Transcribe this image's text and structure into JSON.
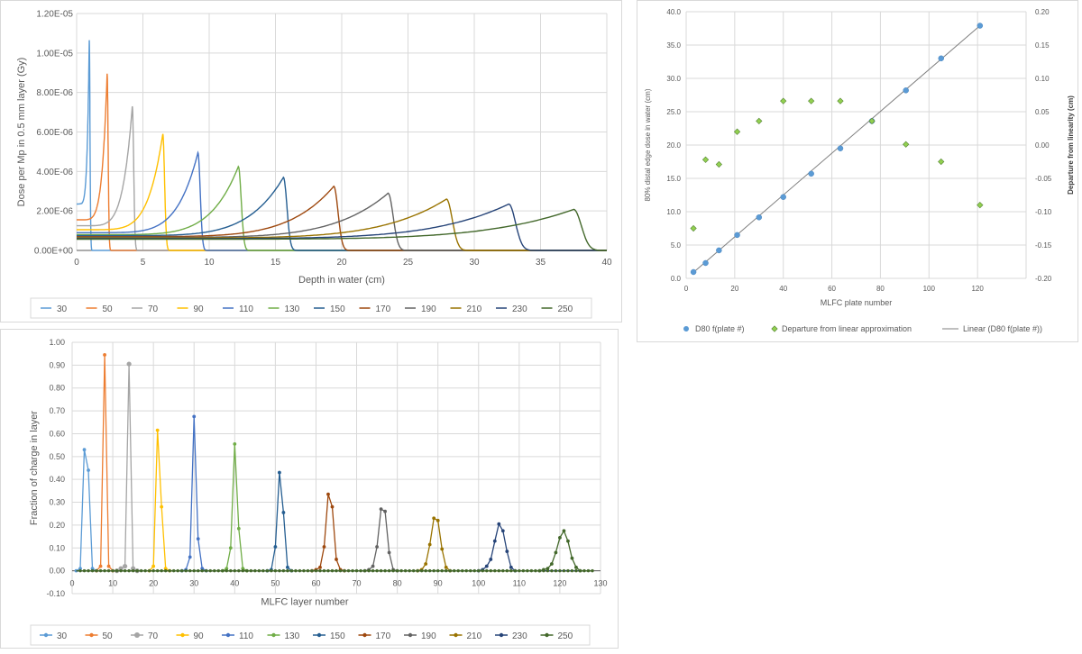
{
  "colors": {
    "e30": "#5b9bd5",
    "e50": "#ed7d31",
    "e70": "#a5a5a5",
    "e90": "#ffc000",
    "e110": "#4472c4",
    "e130": "#70ad47",
    "e150": "#255e91",
    "e170": "#9e480e",
    "e190": "#636363",
    "e210": "#997300",
    "e230": "#264478",
    "e250": "#43682b",
    "grid": "#d9d9d9",
    "axis": "#595959",
    "text": "#595959",
    "d80_marker": "#5b9bd5",
    "departure_marker": "#92d050",
    "departure_edge": "#548235",
    "linear_line": "#7f7f7f"
  },
  "chart_data": [
    {
      "id": "depth_dose",
      "type": "line",
      "title": "",
      "xlabel": "Depth in water (cm)",
      "ylabel": "Dose per Mp in 0.5 mm layer  (Gy)",
      "xlim": [
        0,
        40
      ],
      "ylim": [
        0,
        1.2e-05
      ],
      "x_ticks": [
        "0",
        "5",
        "10",
        "15",
        "20",
        "25",
        "30",
        "35",
        "40"
      ],
      "y_ticks": [
        "0.00E+00",
        "2.00E-06",
        "4.00E-06",
        "6.00E-06",
        "8.00E-06",
        "1.00E-05",
        "1.20E-05"
      ],
      "grid": true,
      "legend_position": "bottom",
      "series": [
        {
          "name": "30",
          "peak_depth": 0.95,
          "peak_dose": 1.065e-05,
          "entrance_dose": 2.35e-06,
          "color_key": "e30"
        },
        {
          "name": "50",
          "peak_depth": 2.3,
          "peak_dose": 8.95e-06,
          "entrance_dose": 1.55e-06,
          "color_key": "e50"
        },
        {
          "name": "70",
          "peak_depth": 4.2,
          "peak_dose": 7.3e-06,
          "entrance_dose": 1.25e-06,
          "color_key": "e70"
        },
        {
          "name": "90",
          "peak_depth": 6.5,
          "peak_dose": 5.9e-06,
          "entrance_dose": 1.05e-06,
          "color_key": "e90"
        },
        {
          "name": "110",
          "peak_depth": 9.15,
          "peak_dose": 4.95e-06,
          "entrance_dose": 9e-07,
          "color_key": "e110"
        },
        {
          "name": "130",
          "peak_depth": 12.2,
          "peak_dose": 4.25e-06,
          "entrance_dose": 8e-07,
          "color_key": "e130"
        },
        {
          "name": "150",
          "peak_depth": 15.6,
          "peak_dose": 3.7e-06,
          "entrance_dose": 7.5e-07,
          "color_key": "e150"
        },
        {
          "name": "170",
          "peak_depth": 19.4,
          "peak_dose": 3.25e-06,
          "entrance_dose": 7e-07,
          "color_key": "e170"
        },
        {
          "name": "190",
          "peak_depth": 23.5,
          "peak_dose": 2.9e-06,
          "entrance_dose": 6.6e-07,
          "color_key": "e190"
        },
        {
          "name": "210",
          "peak_depth": 27.9,
          "peak_dose": 2.6e-06,
          "entrance_dose": 6.3e-07,
          "color_key": "e210"
        },
        {
          "name": "230",
          "peak_depth": 32.6,
          "peak_dose": 2.35e-06,
          "entrance_dose": 6e-07,
          "color_key": "e230"
        },
        {
          "name": "250",
          "peak_depth": 37.5,
          "peak_dose": 2.08e-06,
          "entrance_dose": 5.7e-07,
          "color_key": "e250"
        }
      ]
    },
    {
      "id": "d80_plate",
      "type": "scatter",
      "title": "",
      "xlabel": "MLFC plate number",
      "ylabel": "80% distal edge dose in water (cm)",
      "y2label": "Departure from linearity (cm)",
      "xlim": [
        0,
        140
      ],
      "ylim": [
        0,
        40
      ],
      "y2lim": [
        -0.2,
        0.2
      ],
      "x_ticks": [
        "0",
        "20",
        "40",
        "60",
        "80",
        "100",
        "120"
      ],
      "y_ticks": [
        "0.0",
        "5.0",
        "10.0",
        "15.0",
        "20.0",
        "25.0",
        "30.0",
        "35.0",
        "40.0"
      ],
      "y2_ticks": [
        "-0.20",
        "-0.15",
        "-0.10",
        "-0.05",
        "0.00",
        "0.05",
        "0.10",
        "0.15",
        "0.20"
      ],
      "grid": true,
      "legend_position": "bottom",
      "series": [
        {
          "name": "D80 f(plate #)",
          "axis": "left",
          "x": [
            3,
            8,
            13.5,
            21,
            30,
            40,
            51.5,
            63.5,
            76.5,
            90.5,
            105,
            121
          ],
          "y": [
            0.95,
            2.3,
            4.2,
            6.5,
            9.15,
            12.2,
            15.7,
            19.5,
            23.6,
            28.2,
            33.0,
            37.9
          ]
        },
        {
          "name": "Departure from linear approximation",
          "axis": "right",
          "x": [
            3,
            8,
            13.5,
            21,
            30,
            40,
            51.5,
            63.5,
            76.5,
            90.5,
            105,
            121
          ],
          "y": [
            -0.125,
            -0.022,
            -0.029,
            0.02,
            0.036,
            0.066,
            0.066,
            0.066,
            0.036,
            0.001,
            -0.025,
            -0.09
          ]
        },
        {
          "name": "Linear (D80 f(plate #))",
          "axis": "left",
          "fit": "linear",
          "x": [
            3,
            121
          ],
          "y": [
            0.9,
            37.9
          ]
        }
      ]
    },
    {
      "id": "charge_fraction",
      "type": "line",
      "title": "",
      "xlabel": "MLFC layer number",
      "ylabel": "Fraction of charge in layer",
      "xlim": [
        0,
        130
      ],
      "ylim": [
        -0.1,
        1.0
      ],
      "x_ticks": [
        "0",
        "10",
        "20",
        "30",
        "40",
        "50",
        "60",
        "70",
        "80",
        "90",
        "100",
        "110",
        "120",
        "130"
      ],
      "y_ticks": [
        "-0.10",
        "0.00",
        "0.10",
        "0.20",
        "0.30",
        "0.40",
        "0.50",
        "0.60",
        "0.70",
        "0.80",
        "0.90",
        "1.00"
      ],
      "grid": true,
      "legend_position": "bottom",
      "series": [
        {
          "name": "30",
          "color_key": "e30",
          "points": [
            [
              1,
              0
            ],
            [
              2,
              0.01
            ],
            [
              3,
              0.53
            ],
            [
              4,
              0.44
            ],
            [
              5,
              0.01
            ],
            [
              6,
              0
            ]
          ]
        },
        {
          "name": "50",
          "color_key": "e50",
          "points": [
            [
              6,
              0
            ],
            [
              7,
              0.02
            ],
            [
              8,
              0.945
            ],
            [
              9,
              0.02
            ],
            [
              10,
              0
            ]
          ]
        },
        {
          "name": "70",
          "color_key": "e70",
          "points": [
            [
              11,
              0
            ],
            [
              12,
              0.01
            ],
            [
              13,
              0.02
            ],
            [
              14,
              0.905
            ],
            [
              15,
              0.01
            ],
            [
              16,
              0
            ]
          ]
        },
        {
          "name": "90",
          "color_key": "e90",
          "points": [
            [
              19,
              0
            ],
            [
              20,
              0.02
            ],
            [
              21,
              0.615
            ],
            [
              22,
              0.28
            ],
            [
              23,
              0.01
            ],
            [
              24,
              0
            ]
          ]
        },
        {
          "name": "110",
          "color_key": "e110",
          "points": [
            [
              27,
              0
            ],
            [
              28,
              0.005
            ],
            [
              29,
              0.06
            ],
            [
              30,
              0.675
            ],
            [
              31,
              0.14
            ],
            [
              32,
              0.01
            ],
            [
              33,
              0
            ]
          ]
        },
        {
          "name": "130",
          "color_key": "e130",
          "points": [
            [
              37,
              0
            ],
            [
              38,
              0.01
            ],
            [
              39,
              0.1
            ],
            [
              40,
              0.555
            ],
            [
              41,
              0.185
            ],
            [
              42,
              0.01
            ],
            [
              43,
              0
            ]
          ]
        },
        {
          "name": "150",
          "color_key": "e150",
          "points": [
            [
              48,
              0
            ],
            [
              49,
              0.005
            ],
            [
              50,
              0.105
            ],
            [
              51,
              0.43
            ],
            [
              52,
              0.255
            ],
            [
              53,
              0.015
            ],
            [
              54,
              0
            ]
          ]
        },
        {
          "name": "170",
          "color_key": "e170",
          "points": [
            [
              59,
              0
            ],
            [
              60,
              0.005
            ],
            [
              61,
              0.015
            ],
            [
              62,
              0.105
            ],
            [
              63,
              0.335
            ],
            [
              64,
              0.28
            ],
            [
              65,
              0.05
            ],
            [
              66,
              0.005
            ],
            [
              67,
              0
            ]
          ]
        },
        {
          "name": "190",
          "color_key": "e190",
          "points": [
            [
              72,
              0
            ],
            [
              73,
              0.005
            ],
            [
              74,
              0.02
            ],
            [
              75,
              0.105
            ],
            [
              76,
              0.27
            ],
            [
              77,
              0.26
            ],
            [
              78,
              0.08
            ],
            [
              79,
              0.005
            ],
            [
              80,
              0
            ]
          ]
        },
        {
          "name": "210",
          "color_key": "e210",
          "points": [
            [
              85,
              0
            ],
            [
              86,
              0.005
            ],
            [
              87,
              0.03
            ],
            [
              88,
              0.115
            ],
            [
              89,
              0.23
            ],
            [
              90,
              0.22
            ],
            [
              91,
              0.095
            ],
            [
              92,
              0.015
            ],
            [
              93,
              0
            ]
          ]
        },
        {
          "name": "230",
          "color_key": "e230",
          "points": [
            [
              100,
              0
            ],
            [
              101,
              0.005
            ],
            [
              102,
              0.02
            ],
            [
              103,
              0.05
            ],
            [
              104,
              0.13
            ],
            [
              105,
              0.205
            ],
            [
              106,
              0.175
            ],
            [
              107,
              0.085
            ],
            [
              108,
              0.015
            ],
            [
              109,
              0
            ]
          ]
        },
        {
          "name": "250",
          "color_key": "e250",
          "points": [
            [
              115,
              0
            ],
            [
              116,
              0.005
            ],
            [
              117,
              0.01
            ],
            [
              118,
              0.03
            ],
            [
              119,
              0.08
            ],
            [
              120,
              0.145
            ],
            [
              121,
              0.175
            ],
            [
              122,
              0.13
            ],
            [
              123,
              0.055
            ],
            [
              124,
              0.015
            ],
            [
              125,
              0
            ]
          ]
        }
      ]
    }
  ]
}
